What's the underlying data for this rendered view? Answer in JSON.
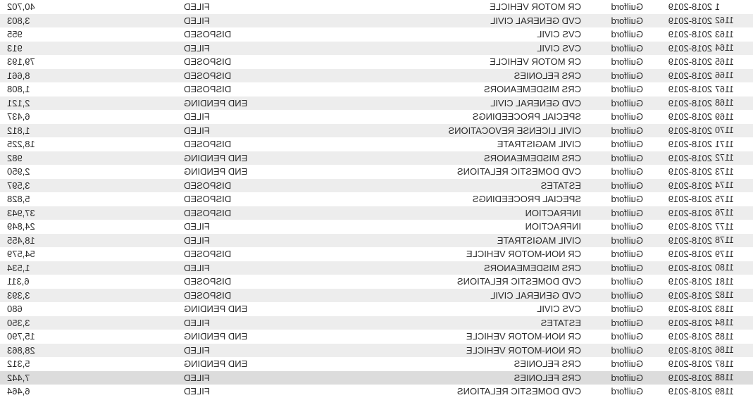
{
  "table": {
    "columns": [
      "idx",
      "year",
      "county",
      "case",
      "filed",
      "count"
    ],
    "column_align": {
      "idx": "right",
      "year": "left",
      "county": "left",
      "case": "left",
      "filed": "right",
      "count": "right"
    },
    "row_colors": {
      "even": "#ededed",
      "odd": "#ffffff",
      "alt": "#dcdcdc"
    },
    "font_family": "Arial",
    "font_size": 13,
    "rows": [
      {
        "idx": "1",
        "year": "2018-2019",
        "county": "Guilford",
        "case": "CR MOTOR VEHICLE",
        "filed": "FILED",
        "count": "40,702",
        "shade": "odd"
      },
      {
        "idx": "1162",
        "year": "2018-2019",
        "county": "Guilford",
        "case": "CVD GENERAL CIVIL",
        "filed": "FILED",
        "count": "3,803",
        "shade": "even"
      },
      {
        "idx": "1163",
        "year": "2018-2019",
        "county": "Guilford",
        "case": "CVS CIVIL",
        "filed": "DISPOSED",
        "count": "955",
        "shade": "odd"
      },
      {
        "idx": "1164",
        "year": "2018-2019",
        "county": "Guilford",
        "case": "CVS CIVIL",
        "filed": "FILED",
        "count": "913",
        "shade": "even"
      },
      {
        "idx": "1165",
        "year": "2018-2019",
        "county": "Guilford",
        "case": "CR MOTOR VEHICLE",
        "filed": "DISPOSED",
        "count": "79,193",
        "shade": "odd"
      },
      {
        "idx": "1166",
        "year": "2018-2019",
        "county": "Guilford",
        "case": "CRS FELONIES",
        "filed": "DISPOSED",
        "count": "8,661",
        "shade": "even"
      },
      {
        "idx": "1167",
        "year": "2018-2019",
        "county": "Guilford",
        "case": "CRS MISDEMEANORS",
        "filed": "DISPOSED",
        "count": "1,808",
        "shade": "odd"
      },
      {
        "idx": "1168",
        "year": "2018-2019",
        "county": "Guilford",
        "case": "CVD GENERAL CIVIL",
        "filed": "END PENDING",
        "count": "2,121",
        "shade": "even"
      },
      {
        "idx": "1169",
        "year": "2018-2019",
        "county": "Guilford",
        "case": "SPECIAL PROCEEDINGS",
        "filed": "FILED",
        "count": "6,437",
        "shade": "odd"
      },
      {
        "idx": "1170",
        "year": "2018-2019",
        "county": "Guilford",
        "case": "CIVIL LICENSE REVOCATIONS",
        "filed": "FILED",
        "count": "1,812",
        "shade": "even"
      },
      {
        "idx": "1171",
        "year": "2018-2019",
        "county": "Guilford",
        "case": "CIVIL MAGISTRATE",
        "filed": "DISPOSED",
        "count": "18,225",
        "shade": "odd"
      },
      {
        "idx": "1172",
        "year": "2018-2019",
        "county": "Guilford",
        "case": "CRS MISDEMEANORS",
        "filed": "END PENDING",
        "count": "982",
        "shade": "even"
      },
      {
        "idx": "1173",
        "year": "2018-2019",
        "county": "Guilford",
        "case": "CVD DOMESTIC RELATIONS",
        "filed": "END PENDING",
        "count": "2,950",
        "shade": "odd"
      },
      {
        "idx": "1174",
        "year": "2018-2019",
        "county": "Guilford",
        "case": "ESTATES",
        "filed": "DISPOSED",
        "count": "3,597",
        "shade": "even"
      },
      {
        "idx": "1175",
        "year": "2018-2019",
        "county": "Guilford",
        "case": "SPECIAL PROCEEDINGS",
        "filed": "DISPOSED",
        "count": "5,828",
        "shade": "odd"
      },
      {
        "idx": "1176",
        "year": "2018-2019",
        "county": "Guilford",
        "case": "INFRACTION",
        "filed": "DISPOSED",
        "count": "37,943",
        "shade": "even"
      },
      {
        "idx": "1177",
        "year": "2018-2019",
        "county": "Guilford",
        "case": "INFRACTION",
        "filed": "FILED",
        "count": "24,849",
        "shade": "odd"
      },
      {
        "idx": "1178",
        "year": "2018-2019",
        "county": "Guilford",
        "case": "CIVIL MAGISTRATE",
        "filed": "FILED",
        "count": "18,455",
        "shade": "even"
      },
      {
        "idx": "1179",
        "year": "2018-2019",
        "county": "Guilford",
        "case": "CR NON-MOTOR VEHICLE",
        "filed": "DISPOSED",
        "count": "54,579",
        "shade": "odd"
      },
      {
        "idx": "1180",
        "year": "2018-2019",
        "county": "Guilford",
        "case": "CRS MISDEMEANORS",
        "filed": "FILED",
        "count": "1,534",
        "shade": "even"
      },
      {
        "idx": "1181",
        "year": "2018-2019",
        "county": "Guilford",
        "case": "CVD DOMESTIC RELATIONS",
        "filed": "DISPOSED",
        "count": "6,311",
        "shade": "odd"
      },
      {
        "idx": "1182",
        "year": "2018-2019",
        "county": "Guilford",
        "case": "CVD GENERAL CIVIL",
        "filed": "DISPOSED",
        "count": "3,393",
        "shade": "even"
      },
      {
        "idx": "1183",
        "year": "2018-2019",
        "county": "Guilford",
        "case": "CVS CIVIL",
        "filed": "END PENDING",
        "count": "680",
        "shade": "odd"
      },
      {
        "idx": "1184",
        "year": "2018-2019",
        "county": "Guilford",
        "case": "ESTATES",
        "filed": "FILED",
        "count": "3,350",
        "shade": "even"
      },
      {
        "idx": "1185",
        "year": "2018-2019",
        "county": "Guilford",
        "case": "CR NON-MOTOR VEHICLE",
        "filed": "END PENDING",
        "count": "15,790",
        "shade": "odd"
      },
      {
        "idx": "1186",
        "year": "2018-2019",
        "county": "Guilford",
        "case": "CR NON-MOTOR VEHICLE",
        "filed": "FILED",
        "count": "28,863",
        "shade": "even"
      },
      {
        "idx": "1187",
        "year": "2018-2019",
        "county": "Guilford",
        "case": "CRS FELONIES",
        "filed": "END PENDING",
        "count": "5,312",
        "shade": "odd"
      },
      {
        "idx": "1188",
        "year": "2018-2019",
        "county": "Guilford",
        "case": "CRS FELONIES",
        "filed": "FILED",
        "count": "7,442",
        "shade": "alt"
      },
      {
        "idx": "1189",
        "year": "2018-2019",
        "county": "Guilford",
        "case": "CVD DOMESTIC RELATIONS",
        "filed": "FILED",
        "count": "6,464",
        "shade": "odd"
      }
    ]
  }
}
